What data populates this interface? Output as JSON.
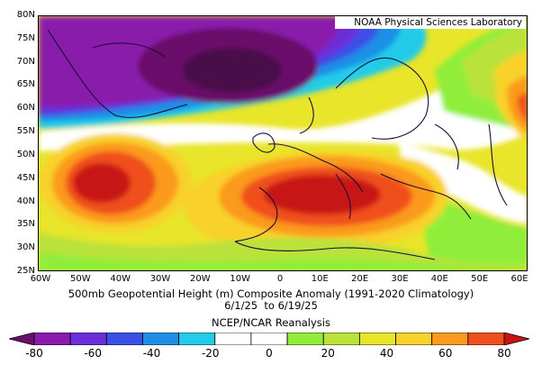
{
  "header": {
    "lab_label": "NOAA Physical Sciences Laboratory"
  },
  "map": {
    "projection": "lat-lon",
    "lat_range": [
      25,
      80
    ],
    "lon_range": [
      -60,
      70
    ],
    "lat_labels": [
      "80N",
      "75N",
      "70N",
      "65N",
      "60N",
      "55N",
      "50N",
      "45N",
      "40N",
      "35N",
      "30N",
      "25N"
    ],
    "lon_labels": [
      "60W",
      "50W",
      "40W",
      "30W",
      "20W",
      "10W",
      "0",
      "10E",
      "20E",
      "30E",
      "40E",
      "50E",
      "60E"
    ],
    "features": [
      {
        "name": "north-atlantic-low",
        "value": -70
      },
      {
        "name": "azores-high",
        "value": 60
      },
      {
        "name": "europe-high",
        "value": 70
      },
      {
        "name": "western-siberia-high",
        "value": 60
      }
    ]
  },
  "captions": {
    "title": "500mb Geopotential Height (m) Composite Anomaly (1991-2020 Climatology)",
    "dates": "6/1/25  to 6/19/25",
    "source": "NCEP/NCAR Reanalysis"
  },
  "colorbar": {
    "labels": [
      "-80",
      "-60",
      "-40",
      "-20",
      "0",
      "20",
      "40",
      "60",
      "80"
    ],
    "colors": [
      "#6a0f6a",
      "#8a1cab",
      "#6a2fd8",
      "#3a4fe6",
      "#1f8fe6",
      "#22cce9",
      "#ffffff",
      "#ffffff",
      "#90ee3a",
      "#b9e23a",
      "#e8e52a",
      "#f8d12a",
      "#fb9a1e",
      "#f0501e",
      "#c81414"
    ]
  }
}
